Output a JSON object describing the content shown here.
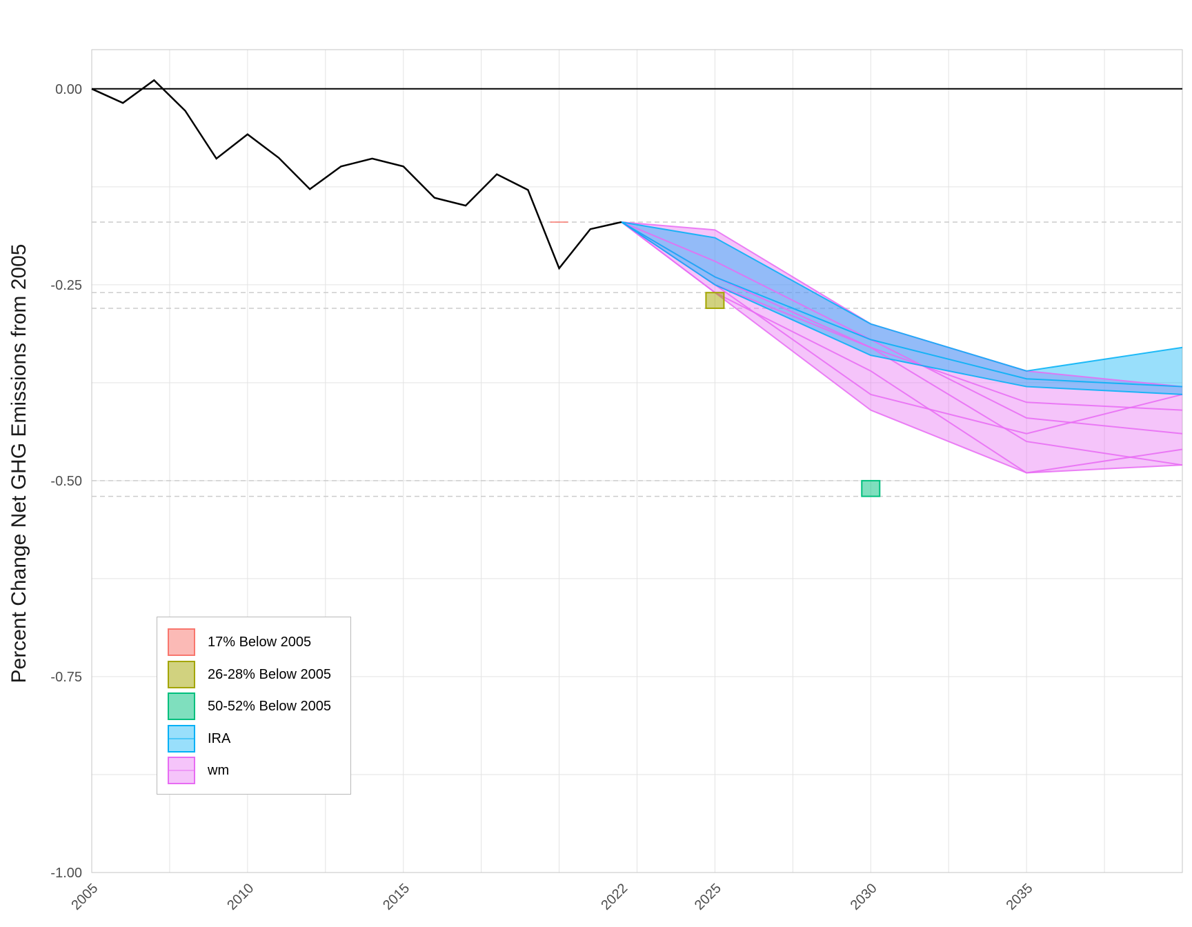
{
  "chart_data": {
    "type": "line",
    "title": "",
    "ylabel": "Percent Change Net GHG Emissions from 2005",
    "xlabel": "",
    "xlim": [
      2005,
      2040
    ],
    "ylim": [
      -1.0,
      0.05
    ],
    "x_ticks": [
      "2005",
      "2010",
      "2015",
      "2022",
      "2025",
      "2030",
      "2035"
    ],
    "y_ticks": [
      "0.00",
      "-0.25",
      "-0.50",
      "-0.75",
      "-1.00"
    ],
    "grid": true,
    "legend_position": "bottom-left",
    "zero_line": 0,
    "historical": {
      "x": [
        2005,
        2006,
        2007,
        2008,
        2009,
        2010,
        2011,
        2012,
        2013,
        2014,
        2015,
        2016,
        2017,
        2018,
        2019,
        2020,
        2021,
        2022
      ],
      "y": [
        0.0,
        -0.018,
        0.011,
        -0.028,
        -0.089,
        -0.058,
        -0.088,
        -0.128,
        -0.099,
        -0.089,
        -0.099,
        -0.139,
        -0.149,
        -0.109,
        -0.129,
        -0.229,
        -0.179,
        -0.17
      ]
    },
    "target_lines": [
      -0.17,
      -0.26,
      -0.28,
      -0.5,
      -0.52
    ],
    "targets": [
      {
        "name": "17% Below 2005",
        "x": 2020,
        "ymin": -0.17,
        "ymax": -0.17,
        "color": "#f8766d"
      },
      {
        "name": "26-28% Below 2005",
        "x": 2025,
        "ymin": -0.28,
        "ymax": -0.26,
        "color": "#a3a500"
      },
      {
        "name": "50-52% Below 2005",
        "x": 2030,
        "ymin": -0.52,
        "ymax": -0.5,
        "color": "#00bf7d"
      }
    ],
    "series": [
      {
        "name": "IRA",
        "color": "#00b0f6",
        "x": [
          2022,
          2025,
          2030,
          2035,
          2040
        ],
        "upper": [
          -0.17,
          -0.19,
          -0.3,
          -0.36,
          -0.33
        ],
        "lower": [
          -0.17,
          -0.25,
          -0.34,
          -0.38,
          -0.39
        ],
        "lines": [
          [
            -0.17,
            -0.19,
            -0.3,
            -0.36,
            -0.33
          ],
          [
            -0.17,
            -0.25,
            -0.34,
            -0.38,
            -0.39
          ],
          [
            -0.17,
            -0.24,
            -0.32,
            -0.37,
            -0.38
          ]
        ]
      },
      {
        "name": "wm",
        "color": "#e76bf3",
        "x": [
          2022,
          2025,
          2030,
          2035,
          2040
        ],
        "upper": [
          -0.17,
          -0.18,
          -0.3,
          -0.36,
          -0.38
        ],
        "lower": [
          -0.17,
          -0.26,
          -0.41,
          -0.49,
          -0.48
        ],
        "lines": [
          [
            -0.17,
            -0.18,
            -0.3,
            -0.36,
            -0.38
          ],
          [
            -0.17,
            -0.26,
            -0.41,
            -0.49,
            -0.48
          ],
          [
            -0.17,
            -0.25,
            -0.39,
            -0.44,
            -0.39
          ],
          [
            -0.17,
            -0.24,
            -0.33,
            -0.45,
            -0.48
          ],
          [
            -0.17,
            -0.25,
            -0.33,
            -0.4,
            -0.41
          ],
          [
            -0.17,
            -0.22,
            -0.32,
            -0.42,
            -0.44
          ],
          [
            -0.17,
            -0.26,
            -0.36,
            -0.49,
            -0.46
          ]
        ]
      }
    ],
    "legend": [
      {
        "label": "17% Below 2005",
        "fill": "#f8766d",
        "border": "#f8766d",
        "opacity": 0.5,
        "mid": false
      },
      {
        "label": "26-28% Below 2005",
        "fill": "#a3a500",
        "border": "#a3a500",
        "opacity": 0.5,
        "mid": false
      },
      {
        "label": "50-52% Below 2005",
        "fill": "#00bf7d",
        "border": "#00bf7d",
        "opacity": 0.5,
        "mid": false
      },
      {
        "label": "IRA",
        "fill": "#00b0f6",
        "border": "#00b0f6",
        "opacity": 0.4,
        "mid": true
      },
      {
        "label": "wm",
        "fill": "#e76bf3",
        "border": "#e76bf3",
        "opacity": 0.4,
        "mid": true
      }
    ]
  }
}
